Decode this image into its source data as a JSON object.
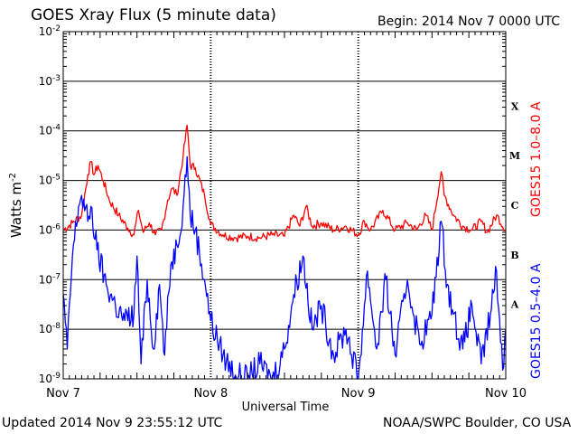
{
  "header": {
    "title": "GOES Xray Flux (5 minute data)",
    "begin_label": "Begin:  2014 Nov 7 0000 UTC"
  },
  "footer": {
    "updated": "Updated 2014 Nov  9 23:55:12 UTC",
    "credit": "NOAA/SWPC Boulder, CO USA"
  },
  "chart_data": {
    "type": "line",
    "title": "GOES Xray Flux (5 minute data)",
    "xlabel": "Universal Time",
    "ylabel": "Watts m",
    "ylabel_sup": "-2",
    "yscale": "log",
    "ylim": [
      1e-09,
      0.01
    ],
    "xlim": [
      "2014-11-07 00:00",
      "2014-11-10 00:00"
    ],
    "x_ticks": [
      "Nov 7",
      "Nov 8",
      "Nov 9",
      "Nov 10"
    ],
    "y_ticks": [
      {
        "base": "10",
        "exp": "-9"
      },
      {
        "base": "10",
        "exp": "-8"
      },
      {
        "base": "10",
        "exp": "-7"
      },
      {
        "base": "10",
        "exp": "-6"
      },
      {
        "base": "10",
        "exp": "-5"
      },
      {
        "base": "10",
        "exp": "-4"
      },
      {
        "base": "10",
        "exp": "-3"
      },
      {
        "base": "10",
        "exp": "-2"
      }
    ],
    "flare_classes": [
      "A",
      "B",
      "C",
      "M",
      "X"
    ],
    "grid": true,
    "series": [
      {
        "name": "GOES15 1.0–8.0 A",
        "color": "#ff0000",
        "points": [
          [
            "2014-11-07 00:00",
            1e-06
          ],
          [
            "2014-11-07 01:30",
            1.4e-06
          ],
          [
            "2014-11-07 03:00",
            2e-06
          ],
          [
            "2014-11-07 04:00",
            1.3e-05
          ],
          [
            "2014-11-07 04:30",
            2.4e-05
          ],
          [
            "2014-11-07 05:00",
            1.3e-05
          ],
          [
            "2014-11-07 05:40",
            2e-05
          ],
          [
            "2014-11-07 06:30",
            1e-05
          ],
          [
            "2014-11-07 07:30",
            4e-06
          ],
          [
            "2014-11-07 09:00",
            2e-06
          ],
          [
            "2014-11-07 10:30",
            1.1e-06
          ],
          [
            "2014-11-07 11:30",
            8e-07
          ],
          [
            "2014-11-07 12:15",
            2.5e-06
          ],
          [
            "2014-11-07 13:00",
            9e-07
          ],
          [
            "2014-11-07 14:00",
            1.4e-06
          ],
          [
            "2014-11-07 15:00",
            8e-07
          ],
          [
            "2014-11-07 16:00",
            1e-06
          ],
          [
            "2014-11-07 17:00",
            4e-06
          ],
          [
            "2014-11-07 17:45",
            7e-06
          ],
          [
            "2014-11-07 18:30",
            5e-06
          ],
          [
            "2014-11-07 19:30",
            3e-05
          ],
          [
            "2014-11-07 20:10",
            0.00013
          ],
          [
            "2014-11-07 20:40",
            2e-05
          ],
          [
            "2014-11-07 21:30",
            1.8e-05
          ],
          [
            "2014-11-07 23:00",
            5e-06
          ],
          [
            "2014-11-08 00:00",
            1.3e-06
          ],
          [
            "2014-11-08 02:00",
            8e-07
          ],
          [
            "2014-11-08 04:00",
            7e-07
          ],
          [
            "2014-11-08 06:00",
            7.5e-07
          ],
          [
            "2014-11-08 08:00",
            7e-07
          ],
          [
            "2014-11-08 10:00",
            8e-07
          ],
          [
            "2014-11-08 12:00",
            7.5e-07
          ],
          [
            "2014-11-08 13:30",
            2e-06
          ],
          [
            "2014-11-08 14:30",
            1.2e-06
          ],
          [
            "2014-11-08 15:30",
            3e-06
          ],
          [
            "2014-11-08 16:30",
            1.2e-06
          ],
          [
            "2014-11-08 18:00",
            1.4e-06
          ],
          [
            "2014-11-08 20:00",
            1e-06
          ],
          [
            "2014-11-08 22:00",
            1.2e-06
          ],
          [
            "2014-11-09 00:00",
            8e-07
          ],
          [
            "2014-11-09 01:00",
            1.5e-06
          ],
          [
            "2014-11-09 02:00",
            1e-06
          ],
          [
            "2014-11-09 04:00",
            2.5e-06
          ],
          [
            "2014-11-09 06:00",
            1e-06
          ],
          [
            "2014-11-09 08:00",
            1.4e-06
          ],
          [
            "2014-11-09 09:30",
            1e-06
          ],
          [
            "2014-11-09 11:00",
            2e-06
          ],
          [
            "2014-11-09 12:00",
            1e-06
          ],
          [
            "2014-11-09 13:30",
            1.5e-05
          ],
          [
            "2014-11-09 14:00",
            5e-06
          ],
          [
            "2014-11-09 15:30",
            2e-06
          ],
          [
            "2014-11-09 17:00",
            1.2e-06
          ],
          [
            "2014-11-09 18:30",
            1e-06
          ],
          [
            "2014-11-09 20:00",
            1.5e-06
          ],
          [
            "2014-11-09 21:00",
            9e-07
          ],
          [
            "2014-11-09 22:30",
            2e-06
          ],
          [
            "2014-11-10 00:00",
            1e-06
          ]
        ]
      },
      {
        "name": "GOES15 0.5–4.0 A",
        "color": "#0000ff",
        "points": [
          [
            "2014-11-07 00:00",
            5e-08
          ],
          [
            "2014-11-07 00:40",
            4e-09
          ],
          [
            "2014-11-07 01:30",
            3e-07
          ],
          [
            "2014-11-07 02:30",
            3e-06
          ],
          [
            "2014-11-07 03:00",
            5e-06
          ],
          [
            "2014-11-07 04:00",
            1.5e-06
          ],
          [
            "2014-11-07 04:30",
            3e-06
          ],
          [
            "2014-11-07 05:30",
            4e-07
          ],
          [
            "2014-11-07 07:00",
            8e-08
          ],
          [
            "2014-11-07 08:30",
            3e-08
          ],
          [
            "2014-11-07 10:00",
            1.5e-08
          ],
          [
            "2014-11-07 11:30",
            2e-08
          ],
          [
            "2014-11-07 12:00",
            3e-07
          ],
          [
            "2014-11-07 12:40",
            2e-09
          ],
          [
            "2014-11-07 13:40",
            1e-07
          ],
          [
            "2014-11-07 14:40",
            4e-09
          ],
          [
            "2014-11-07 15:40",
            8e-08
          ],
          [
            "2014-11-07 16:30",
            3e-09
          ],
          [
            "2014-11-07 17:30",
            2e-07
          ],
          [
            "2014-11-07 18:30",
            5e-07
          ],
          [
            "2014-11-07 19:30",
            3e-06
          ],
          [
            "2014-11-07 20:10",
            3e-05
          ],
          [
            "2014-11-07 20:40",
            2e-06
          ],
          [
            "2014-11-07 21:30",
            1e-06
          ],
          [
            "2014-11-07 23:00",
            1e-07
          ],
          [
            "2014-11-08 00:00",
            1.5e-08
          ],
          [
            "2014-11-08 02:00",
            3e-09
          ],
          [
            "2014-11-08 04:00",
            1.2e-09
          ],
          [
            "2014-11-08 06:00",
            1e-09
          ],
          [
            "2014-11-08 08:00",
            2e-09
          ],
          [
            "2014-11-08 10:00",
            1e-09
          ],
          [
            "2014-11-08 12:00",
            4e-09
          ],
          [
            "2014-11-08 13:30",
            5e-08
          ],
          [
            "2014-11-08 15:00",
            3e-07
          ],
          [
            "2014-11-08 16:30",
            1e-08
          ],
          [
            "2014-11-08 18:00",
            3e-08
          ],
          [
            "2014-11-08 20:00",
            3e-09
          ],
          [
            "2014-11-08 22:00",
            1e-08
          ],
          [
            "2014-11-09 00:00",
            1e-09
          ],
          [
            "2014-11-09 01:30",
            1.5e-07
          ],
          [
            "2014-11-09 03:00",
            4e-09
          ],
          [
            "2014-11-09 04:30",
            1e-07
          ],
          [
            "2014-11-09 06:00",
            3e-09
          ],
          [
            "2014-11-09 08:00",
            1e-07
          ],
          [
            "2014-11-09 10:00",
            5e-09
          ],
          [
            "2014-11-09 12:00",
            2e-08
          ],
          [
            "2014-11-09 13:30",
            1.5e-06
          ],
          [
            "2014-11-09 14:30",
            8e-08
          ],
          [
            "2014-11-09 15:30",
            2e-08
          ],
          [
            "2014-11-09 17:00",
            4e-09
          ],
          [
            "2014-11-09 18:30",
            3e-08
          ],
          [
            "2014-11-09 20:00",
            2e-09
          ],
          [
            "2014-11-09 21:30",
            2e-08
          ],
          [
            "2014-11-09 22:30",
            1.5e-07
          ],
          [
            "2014-11-09 23:30",
            1.5e-09
          ],
          [
            "2014-11-10 00:00",
            1e-08
          ]
        ]
      }
    ]
  }
}
